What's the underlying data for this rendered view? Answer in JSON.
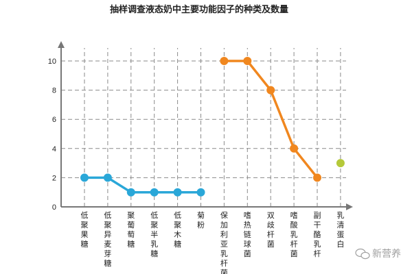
{
  "chart_data": {
    "type": "line",
    "title": "抽样调查液态奶中主要功能因子的种类及数量",
    "xlabel": "",
    "ylabel": "",
    "ylim": [
      0,
      11
    ],
    "yticks": [
      0,
      2,
      4,
      6,
      8,
      10
    ],
    "grid": true,
    "categories": [
      "低聚果糖",
      "低聚异麦芽糖",
      "聚葡萄糖",
      "低聚半乳糖",
      "低聚木糖",
      "菊粉",
      "保加利亚乳杆菌",
      "嗜热链球菌",
      "双歧杆菌",
      "嗜酸乳杆菌",
      "副干酪乳杆",
      "乳清蛋白"
    ],
    "series": [
      {
        "color": "#2aa7d8",
        "values": [
          2,
          2,
          1,
          1,
          1,
          1,
          null,
          null,
          null,
          null,
          null,
          null
        ]
      },
      {
        "color": "#f0871f",
        "values": [
          null,
          null,
          null,
          null,
          null,
          null,
          10,
          10,
          8,
          4,
          2,
          null
        ]
      },
      {
        "color": "#b5c93a",
        "values": [
          null,
          null,
          null,
          null,
          null,
          null,
          null,
          null,
          null,
          null,
          null,
          3
        ]
      }
    ]
  },
  "watermark": {
    "icon": "wechat-icon",
    "text": "新营养"
  }
}
